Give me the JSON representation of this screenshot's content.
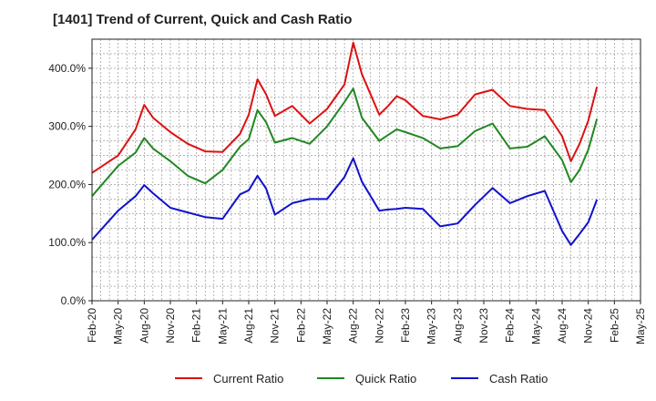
{
  "chart_data": {
    "type": "line",
    "title": "[1401]  Trend of Current, Quick and Cash Ratio",
    "xlabel": "",
    "ylabel": "",
    "ylim": [
      0,
      450
    ],
    "y_ticks": [
      0,
      100,
      200,
      300,
      400
    ],
    "y_tick_labels": [
      "0.0%",
      "100.0%",
      "200.0%",
      "300.0%",
      "400.0%"
    ],
    "x_tick_labels": [
      "Feb-20",
      "May-20",
      "Aug-20",
      "Nov-20",
      "Feb-21",
      "May-21",
      "Aug-21",
      "Nov-21",
      "Feb-22",
      "May-22",
      "Aug-22",
      "Nov-22",
      "Feb-23",
      "May-23",
      "Aug-23",
      "Nov-23",
      "Feb-24",
      "May-24",
      "Aug-24",
      "Nov-24",
      "Feb-25",
      "May-25"
    ],
    "grid": true,
    "legend_position": "bottom",
    "x": [
      0,
      1,
      2,
      3,
      4,
      5,
      6,
      7,
      8,
      9,
      10,
      11,
      12,
      13,
      14,
      15,
      16,
      17,
      18,
      19,
      20,
      21,
      22,
      23,
      24,
      25,
      26,
      27,
      28,
      29,
      30,
      31,
      32,
      33,
      34,
      35,
      36,
      37,
      38,
      39,
      40,
      41,
      42,
      43,
      44,
      45,
      46,
      47,
      48,
      49,
      50,
      51,
      52,
      53,
      54,
      55,
      56,
      57,
      58,
      59,
      60
    ],
    "series": [
      {
        "name": "Current Ratio",
        "color": "#dd1111",
        "x": [
          0,
          3,
          5,
          6,
          7,
          9,
          11,
          13,
          15,
          17,
          18,
          19,
          20,
          21,
          23,
          25,
          27,
          29,
          30,
          31,
          33,
          34,
          35,
          36,
          38,
          40,
          42,
          44,
          46,
          48,
          50,
          52,
          54,
          55,
          56,
          57,
          58,
          59,
          60
        ],
        "values": [
          220,
          250,
          295,
          337,
          315,
          290,
          270,
          257,
          256,
          287,
          320,
          381,
          355,
          318,
          335,
          305,
          330,
          372,
          444,
          390,
          320,
          335,
          352,
          345,
          318,
          312,
          320,
          355,
          363,
          335,
          330,
          328,
          283,
          240,
          270,
          310,
          368,
          null,
          null
        ]
      },
      {
        "name": "Quick Ratio",
        "color": "#228822",
        "x": [
          0,
          3,
          5,
          6,
          7,
          9,
          11,
          13,
          15,
          17,
          18,
          19,
          20,
          21,
          23,
          25,
          27,
          29,
          30,
          31,
          33,
          34,
          35,
          36,
          38,
          40,
          42,
          44,
          46,
          48,
          50,
          52,
          54,
          55,
          56,
          57,
          58
        ],
        "values": [
          180,
          232,
          255,
          280,
          262,
          240,
          215,
          202,
          225,
          265,
          278,
          328,
          307,
          272,
          280,
          270,
          300,
          342,
          365,
          315,
          275,
          285,
          295,
          290,
          280,
          262,
          266,
          292,
          305,
          262,
          265,
          283,
          242,
          204,
          225,
          260,
          313
        ]
      },
      {
        "name": "Cash Ratio",
        "color": "#1111cc",
        "x": [
          0,
          3,
          5,
          6,
          7,
          9,
          11,
          13,
          15,
          17,
          18,
          19,
          20,
          21,
          23,
          25,
          27,
          29,
          30,
          31,
          33,
          34,
          35,
          36,
          38,
          40,
          42,
          44,
          46,
          48,
          50,
          52,
          54,
          55,
          56,
          57,
          58
        ],
        "values": [
          105,
          155,
          180,
          199,
          185,
          160,
          152,
          144,
          141,
          183,
          190,
          215,
          193,
          148,
          168,
          175,
          175,
          213,
          245,
          205,
          155,
          157,
          158,
          160,
          158,
          128,
          133,
          165,
          194,
          168,
          180,
          189,
          120,
          96,
          115,
          135,
          174
        ]
      }
    ]
  }
}
